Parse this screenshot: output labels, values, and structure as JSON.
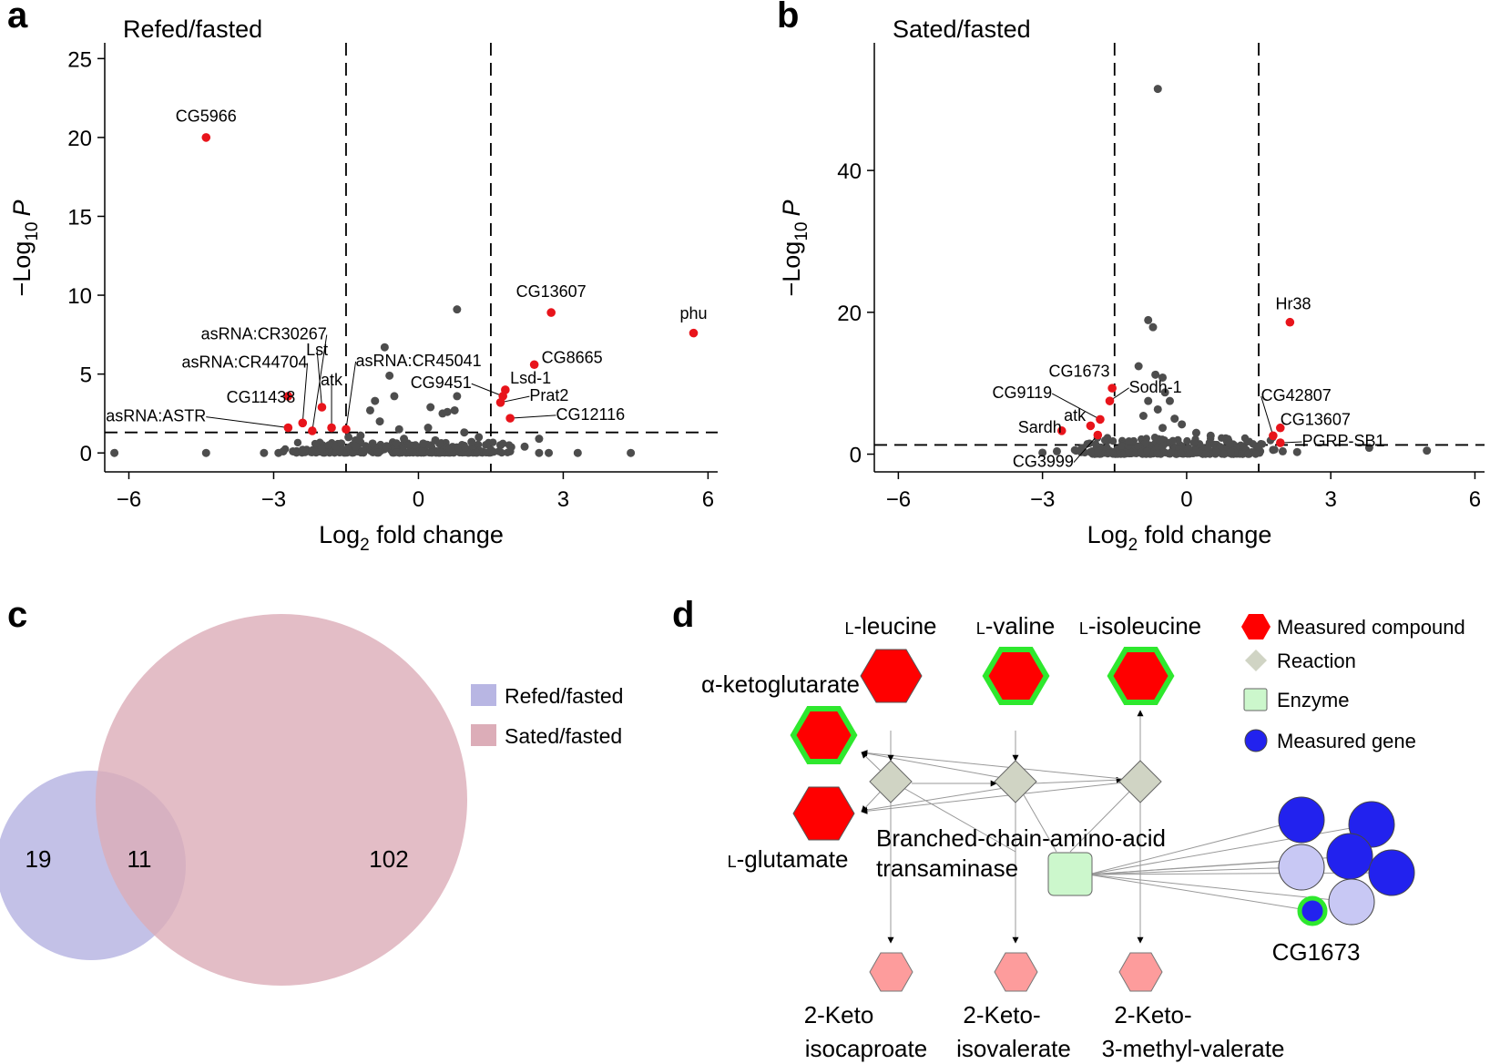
{
  "panels": {
    "a": "a",
    "b": "b",
    "c": "c",
    "d": "d"
  },
  "colors": {
    "sig": "#e8141b",
    "nonsig": "#4d4d4d",
    "venn_a": "#b8b6e3",
    "venn_b": "#dcadb8",
    "measured": "#ff0000",
    "measured_ring": "#2ee82e",
    "reaction": "#d0d4c4",
    "enzyme": "#ccf7cc",
    "gene": "#2222ee",
    "gene_light": "#c8c8f4",
    "product": "#fd9c9c"
  },
  "chart_data": [
    {
      "panel": "a",
      "type": "scatter",
      "title": "Refed/fasted",
      "xlabel_main": "Log",
      "xlabel_sub": "2",
      "xlabel_tail": " fold change",
      "ylabel_main": "−Log",
      "ylabel_sub": "10",
      "ylabel_var": "P",
      "xlim": [
        -6.5,
        6.2
      ],
      "ylim": [
        -1.2,
        26
      ],
      "xticks": [
        -6,
        -3,
        0,
        3,
        6
      ],
      "xtick_labels": [
        "−6",
        "−3",
        "0",
        "3",
        "6"
      ],
      "yticks": [
        0,
        5,
        10,
        15,
        20,
        25
      ],
      "ytick_labels": [
        "0",
        "5",
        "10",
        "15",
        "20",
        "25"
      ],
      "fc_threshold": [
        -1.5,
        1.5
      ],
      "p_threshold": 1.3,
      "significant": [
        {
          "label": "CG5966",
          "x": -4.4,
          "y": 20.0,
          "lx": -4.4,
          "ly": 21.0,
          "anchor": "middle"
        },
        {
          "label": "CG13607",
          "x": 2.75,
          "y": 8.9,
          "lx": 2.75,
          "ly": 9.9,
          "anchor": "middle"
        },
        {
          "label": "phu",
          "x": 5.7,
          "y": 7.6,
          "lx": 5.7,
          "ly": 8.5,
          "anchor": "middle"
        },
        {
          "label": "CG8665",
          "x": 2.4,
          "y": 5.6,
          "lx": 2.55,
          "ly": 5.7,
          "anchor": "start"
        },
        {
          "label": "Lsd-1",
          "x": 1.8,
          "y": 4.0,
          "lx": 1.9,
          "ly": 4.4,
          "anchor": "start"
        },
        {
          "label": "Prat2",
          "x": 1.7,
          "y": 3.2,
          "lx": 2.3,
          "ly": 3.3,
          "anchor": "start"
        },
        {
          "label": "CG12116",
          "x": 1.9,
          "y": 2.2,
          "lx": 2.85,
          "ly": 2.1,
          "anchor": "start"
        },
        {
          "label": "CG9451",
          "x": 1.75,
          "y": 3.6,
          "lx": 1.1,
          "ly": 4.1,
          "anchor": "end"
        },
        {
          "label": "asRNA:CR45041",
          "x": -1.5,
          "y": 1.5,
          "lx": -1.3,
          "ly": 5.5,
          "anchor": "start"
        },
        {
          "label": "atk",
          "x": -1.8,
          "y": 1.6,
          "lx": -1.8,
          "ly": 4.3,
          "anchor": "middle"
        },
        {
          "label": "Lst",
          "x": -2.0,
          "y": 2.9,
          "lx": -2.1,
          "ly": 6.2,
          "anchor": "middle"
        },
        {
          "label": "asRNA:CR30267",
          "x": -2.2,
          "y": 1.4,
          "lx": -1.9,
          "ly": 7.2,
          "anchor": "end"
        },
        {
          "label": "asRNA:CR44704",
          "x": -2.4,
          "y": 1.9,
          "lx": -2.3,
          "ly": 5.4,
          "anchor": "end"
        },
        {
          "label": "CG11438",
          "x": -2.7,
          "y": 3.6,
          "lx": -2.55,
          "ly": 3.2,
          "anchor": "end"
        },
        {
          "label": "asRNA:ASTR",
          "x": -2.7,
          "y": 1.6,
          "lx": -4.4,
          "ly": 2.0,
          "anchor": "end"
        }
      ],
      "nonsig_points": [
        [
          -6.3,
          0
        ],
        [
          -4.4,
          0
        ],
        [
          -3.2,
          0
        ],
        [
          -2.9,
          0
        ],
        [
          -2.8,
          0.1
        ],
        [
          -2.6,
          0.1
        ],
        [
          -2.4,
          0.2
        ],
        [
          -2.2,
          0.1
        ],
        [
          -2.0,
          0.3
        ],
        [
          -1.85,
          0.5
        ],
        [
          -1.7,
          0.4
        ],
        [
          -1.6,
          0.6
        ],
        [
          -1.45,
          1.0
        ],
        [
          -1.3,
          0.8
        ],
        [
          -1.2,
          1.1
        ],
        [
          -1.0,
          2.7
        ],
        [
          -0.9,
          3.3
        ],
        [
          -0.8,
          2.0
        ],
        [
          -0.7,
          6.7
        ],
        [
          -0.6,
          4.9
        ],
        [
          -0.5,
          3.6
        ],
        [
          -0.4,
          1.5
        ],
        [
          -0.3,
          0.9
        ],
        [
          0.1,
          0.6
        ],
        [
          0.2,
          1.6
        ],
        [
          0.25,
          2.9
        ],
        [
          0.5,
          2.5
        ],
        [
          0.6,
          2.6
        ],
        [
          0.75,
          2.7
        ],
        [
          0.8,
          3.6
        ],
        [
          0.8,
          9.1
        ],
        [
          0.95,
          1.3
        ],
        [
          1.1,
          0.7
        ],
        [
          1.25,
          1.0
        ],
        [
          1.5,
          0.2
        ],
        [
          1.7,
          0.5
        ],
        [
          1.9,
          0.1
        ],
        [
          2.2,
          0.4
        ],
        [
          2.5,
          0
        ],
        [
          2.5,
          0.9
        ],
        [
          2.7,
          0
        ],
        [
          3.3,
          0
        ],
        [
          4.4,
          0
        ],
        [
          -1.3,
          0.4
        ],
        [
          -0.2,
          0.5
        ],
        [
          0.35,
          0.8
        ],
        [
          0.65,
          0.3
        ],
        [
          -0.95,
          0.6
        ]
      ],
      "dense_band": {
        "x_from": -2.8,
        "x_to": 2.1,
        "y_max": 0.7
      }
    },
    {
      "panel": "b",
      "type": "scatter",
      "title": "Sated/fasted",
      "xlabel_main": "Log",
      "xlabel_sub": "2",
      "xlabel_tail": " fold change",
      "ylabel_main": "−Log",
      "ylabel_sub": "10",
      "ylabel_var": "P",
      "xlim": [
        -6.5,
        6.2
      ],
      "ylim": [
        -2.5,
        58
      ],
      "xticks": [
        -6,
        -3,
        0,
        3,
        6
      ],
      "xtick_labels": [
        "−6",
        "−3",
        "0",
        "3",
        "6"
      ],
      "yticks": [
        0,
        20,
        40
      ],
      "ytick_labels": [
        "0",
        "20",
        "40"
      ],
      "fc_threshold": [
        -1.5,
        1.5
      ],
      "p_threshold": 1.3,
      "significant": [
        {
          "label": "Hr38",
          "x": 2.15,
          "y": 18.6,
          "lx": 1.85,
          "ly": 20.4,
          "anchor": "start"
        },
        {
          "label": "CG1673",
          "x": -1.55,
          "y": 9.3,
          "lx": -1.6,
          "ly": 10.9,
          "anchor": "end"
        },
        {
          "label": "Sodh-1",
          "x": -1.6,
          "y": 7.5,
          "lx": -1.2,
          "ly": 8.7,
          "anchor": "start"
        },
        {
          "label": "CG9119",
          "x": -1.8,
          "y": 4.9,
          "lx": -2.8,
          "ly": 7.9,
          "anchor": "end"
        },
        {
          "label": "atk",
          "x": -2.0,
          "y": 4.0,
          "lx": -2.1,
          "ly": 4.7,
          "anchor": "end"
        },
        {
          "label": "Sardh",
          "x": -2.6,
          "y": 3.3,
          "lx": -2.6,
          "ly": 3.0,
          "anchor": "end"
        },
        {
          "label": "CG3999",
          "x": -1.85,
          "y": 2.7,
          "lx": -2.35,
          "ly": -1.8,
          "anchor": "end"
        },
        {
          "label": "CG42807",
          "x": 1.8,
          "y": 2.6,
          "lx": 1.55,
          "ly": 7.5,
          "anchor": "start"
        },
        {
          "label": "CG13607",
          "x": 1.95,
          "y": 3.7,
          "lx": 1.95,
          "ly": 4.1,
          "anchor": "start"
        },
        {
          "label": "PGRP-SB1",
          "x": 1.95,
          "y": 1.6,
          "lx": 2.4,
          "ly": 1.1,
          "anchor": "start"
        }
      ],
      "nonsig_points": [
        [
          -0.6,
          51.5
        ],
        [
          -0.8,
          18.9
        ],
        [
          -0.7,
          17.9
        ],
        [
          -1.0,
          12.4
        ],
        [
          -0.65,
          11.2
        ],
        [
          -0.5,
          10.8
        ],
        [
          -0.45,
          8.7
        ],
        [
          -0.8,
          7.5
        ],
        [
          -0.35,
          7.5
        ],
        [
          -0.6,
          6.3
        ],
        [
          -0.9,
          5.4
        ],
        [
          -0.25,
          5.0
        ],
        [
          -0.1,
          4.2
        ],
        [
          -0.5,
          3.7
        ],
        [
          0.2,
          3.0
        ],
        [
          0.5,
          2.6
        ],
        [
          -3.0,
          0.2
        ],
        [
          -2.7,
          0.4
        ],
        [
          -2.3,
          0.5
        ],
        [
          -2.0,
          0.3
        ],
        [
          1.8,
          0.6
        ],
        [
          2.0,
          0.4
        ],
        [
          2.3,
          0.3
        ],
        [
          3.8,
          0.9
        ],
        [
          5.0,
          0.5
        ],
        [
          -1.2,
          1.8
        ],
        [
          0.9,
          1.5
        ]
      ],
      "dense_band": {
        "x_from": -2.5,
        "x_to": 1.9,
        "y_max": 2.4
      }
    }
  ],
  "venn": {
    "legend": [
      "Refed/fasted",
      "Sated/fasted"
    ],
    "only_a": "19",
    "both": "11",
    "only_b": "102"
  },
  "network": {
    "compounds": {
      "leucine_prefix": "l",
      "leucine": "-leucine",
      "valine_prefix": "l",
      "valine": "-valine",
      "isoleucine_prefix": "l",
      "isoleucine": "-isoleucine",
      "akg": "α-ketoglutarate",
      "glutamate_prefix": "l",
      "glutamate": "-glutamate"
    },
    "enzyme_line1": "Branched-chain-amino-acid",
    "enzyme_line2": "transaminase",
    "gene_label": "CG1673",
    "products": {
      "p1_line1": "2-Keto",
      "p1_line2": "isocaproate",
      "p2_line1": "2-Keto-",
      "p2_line2": "isovalerate",
      "p3_line1": "2-Keto-",
      "p3_line2": "3-methyl-valerate"
    },
    "legend": {
      "measured_compound": "Measured compound",
      "reaction": "Reaction",
      "enzyme": "Enzyme",
      "measured_gene": "Measured gene"
    }
  }
}
